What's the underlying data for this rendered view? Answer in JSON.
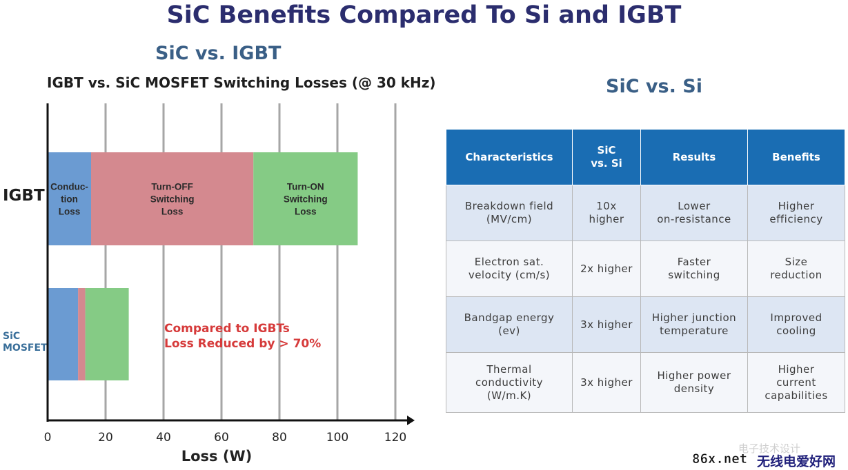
{
  "header": {
    "title": "SiC Benefits Compared To Si and IGBT",
    "left_subtitle": "SiC vs. IGBT",
    "right_subtitle": "SiC vs. Si"
  },
  "chart_data": {
    "type": "bar",
    "orientation": "horizontal",
    "stacked": true,
    "title": "IGBT vs. SiC MOSFET Switching Losses (@ 30 kHz)",
    "xlabel": "Loss (W)",
    "ylabel": "",
    "xlim": [
      0,
      125
    ],
    "xticks": [
      0,
      20,
      40,
      60,
      80,
      100,
      120
    ],
    "grid": "vertical",
    "categories": [
      "IGBT",
      "SiC MOSFET"
    ],
    "series": [
      {
        "name": "Conduction Loss",
        "label": "Conduc-\ntion\nLoss",
        "color": "#6b9bd2",
        "values": [
          15,
          10.5
        ]
      },
      {
        "name": "Turn-OFF Switching Loss",
        "label": "Turn-OFF\nSwitching\nLoss",
        "color": "#d4898f",
        "values": [
          56,
          2.5
        ]
      },
      {
        "name": "Turn-ON Switching Loss",
        "label": "Turn-ON\nSwitching\nLoss",
        "color": "#85cb85",
        "values": [
          36,
          15
        ]
      }
    ],
    "annotation": [
      "Compared to IGBTs",
      "Loss Reduced by > 70%"
    ],
    "annotation_color": "#d63a3a"
  },
  "table": {
    "headers": [
      "Characteristics",
      "SiC\nvs. Si",
      "Results",
      "Benefits"
    ],
    "rows": [
      [
        "Breakdown field\n(MV/cm)",
        "10x\nhigher",
        "Lower\non-resistance",
        "Higher\nefficiency"
      ],
      [
        "Electron sat.\nvelocity (cm/s)",
        "2x higher",
        "Faster\nswitching",
        "Size\nreduction"
      ],
      [
        "Bandgap energy\n(ev)",
        "3x higher",
        "Higher junction\ntemperature",
        "Improved\ncooling"
      ],
      [
        "Thermal\nconductivity\n(W/m.K)",
        "3x higher",
        "Higher power\ndensity",
        "Higher\ncurrent\ncapabilities"
      ]
    ]
  },
  "watermark": {
    "text1": "86x.net",
    "text2": "无线电爱好网",
    "text3": "电子技术设计"
  }
}
